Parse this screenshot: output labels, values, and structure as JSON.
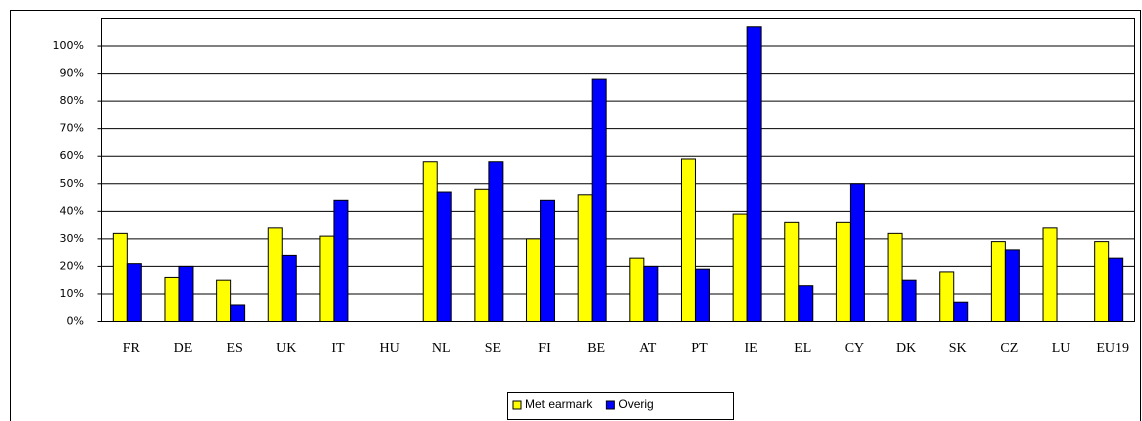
{
  "chart_data": {
    "type": "bar",
    "categories": [
      "FR",
      "DE",
      "ES",
      "UK",
      "IT",
      "HU",
      "NL",
      "SE",
      "FI",
      "BE",
      "AT",
      "PT",
      "IE",
      "EL",
      "CY",
      "DK",
      "SK",
      "CZ",
      "LU",
      "EU19"
    ],
    "series": [
      {
        "name": "Met earmark",
        "color": "#ffff00",
        "values": [
          32,
          16,
          15,
          34,
          31,
          null,
          58,
          48,
          30,
          46,
          23,
          59,
          39,
          36,
          36,
          32,
          18,
          29,
          34,
          29
        ]
      },
      {
        "name": "Overig",
        "color": "#0000ff",
        "values": [
          21,
          20,
          6,
          24,
          44,
          null,
          47,
          58,
          44,
          88,
          20,
          19,
          107,
          13,
          50,
          15,
          7,
          26,
          null,
          23
        ]
      }
    ],
    "ylim": [
      0,
      110
    ],
    "yticks": [
      {
        "value": 0,
        "label": "0%"
      },
      {
        "value": 10,
        "label": "10%"
      },
      {
        "value": 20,
        "label": "20%"
      },
      {
        "value": 30,
        "label": "30%"
      },
      {
        "value": 40,
        "label": "40%"
      },
      {
        "value": 50,
        "label": "50%"
      },
      {
        "value": 60,
        "label": "60%"
      },
      {
        "value": 70,
        "label": "70%"
      },
      {
        "value": 80,
        "label": "80%"
      },
      {
        "value": 90,
        "label": "90%"
      },
      {
        "value": 100,
        "label": "100%"
      }
    ],
    "grid": true,
    "legend": "bottom"
  }
}
